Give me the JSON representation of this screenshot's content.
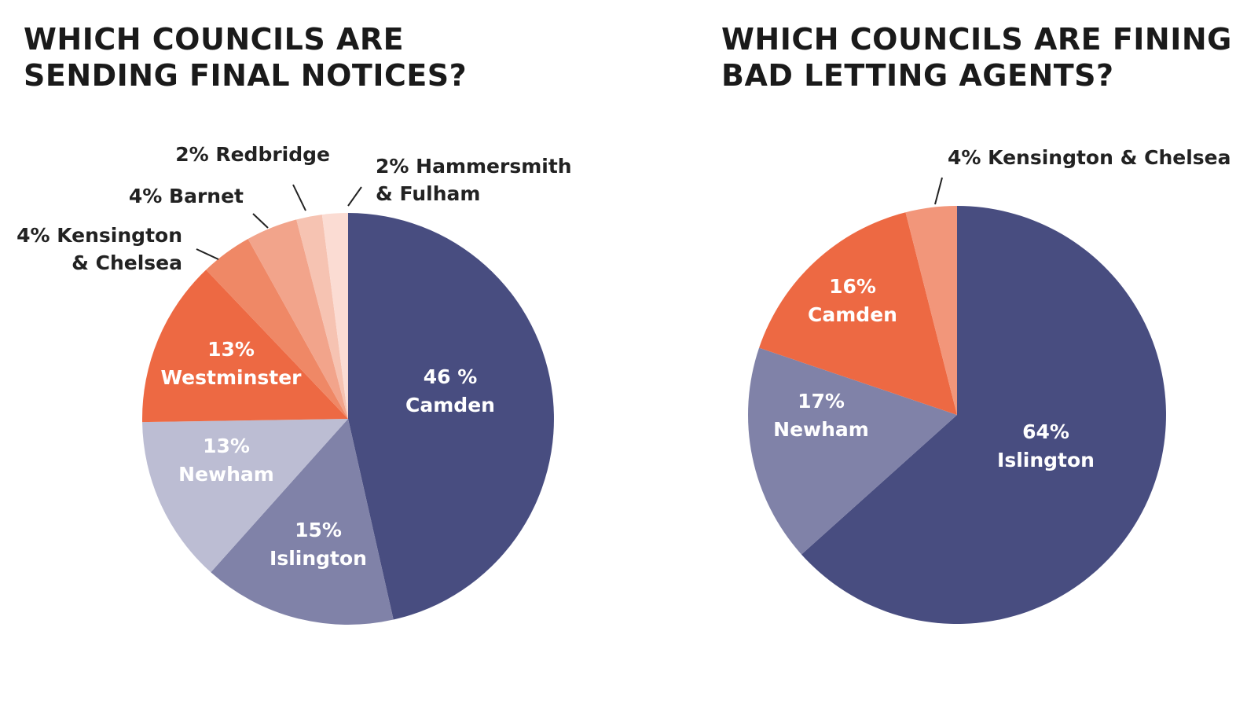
{
  "chart_data": [
    {
      "type": "pie",
      "title": [
        "WHICH COUNCILS ARE",
        "SENDING FINAL NOTICES?"
      ],
      "slices": [
        {
          "name": "Camden",
          "value": 46,
          "label": [
            "46 %",
            "Camden"
          ],
          "color": "#484d80",
          "text_color": "#ffffff"
        },
        {
          "name": "Islington",
          "value": 15,
          "label": [
            "15%",
            "Islington"
          ],
          "color": "#8082a8",
          "text_color": "#ffffff"
        },
        {
          "name": "Newham",
          "value": 13,
          "label": [
            "13%",
            "Newham"
          ],
          "color": "#bcbdd3",
          "text_color": "#ffffff"
        },
        {
          "name": "Westminster",
          "value": 13,
          "label": [
            "13%",
            "Westminster"
          ],
          "color": "#ed6943",
          "text_color": "#ffffff"
        },
        {
          "name": "Kensington & Chelsea",
          "value": 4,
          "label": [
            "4% Kensington",
            "& Chelsea"
          ],
          "color": "#ef8866",
          "callout": true
        },
        {
          "name": "Barnet",
          "value": 4,
          "label": [
            "4% Barnet"
          ],
          "color": "#f2a48b",
          "callout": true
        },
        {
          "name": "Redbridge",
          "value": 2,
          "label": [
            "2% Redbridge"
          ],
          "color": "#f6c3b2",
          "callout": true
        },
        {
          "name": "Hammersmith & Fulham",
          "value": 2,
          "label": [
            "2% Hammersmith",
            "& Fulham"
          ],
          "color": "#fbdcd3",
          "callout": true
        }
      ]
    },
    {
      "type": "pie",
      "title": [
        "WHICH COUNCILS ARE FINING",
        "BAD LETTING AGENTS?"
      ],
      "slices": [
        {
          "name": "Islington",
          "value": 64,
          "label": [
            "64%",
            "Islington"
          ],
          "color": "#484d80",
          "text_color": "#ffffff"
        },
        {
          "name": "Newham",
          "value": 17,
          "label": [
            "17%",
            "Newham"
          ],
          "color": "#8082a8",
          "text_color": "#ffffff"
        },
        {
          "name": "Camden",
          "value": 16,
          "label": [
            "16%",
            "Camden"
          ],
          "color": "#ed6943",
          "text_color": "#ffffff"
        },
        {
          "name": "Kensington & Chelsea",
          "value": 4,
          "label": [
            "4% Kensington & Chelsea"
          ],
          "color": "#f2967a",
          "callout": true
        }
      ]
    }
  ]
}
